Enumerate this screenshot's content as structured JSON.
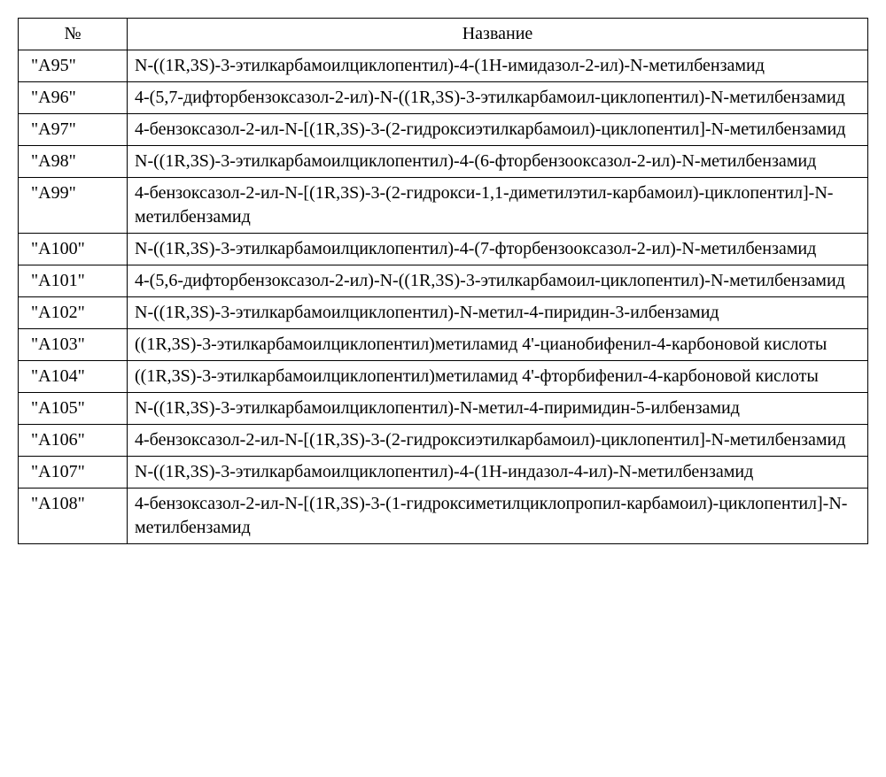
{
  "table": {
    "headers": {
      "num": "№",
      "name": "Название"
    },
    "rows": [
      {
        "num": "\"A95\"",
        "name": "N-((1R,3S)-3-этилкарбамоилциклопентил)-4-(1H-имидазол-2-ил)-N-метилбензамид"
      },
      {
        "num": "\"A96\"",
        "name": "4-(5,7-дифторбензоксазол-2-ил)-N-((1R,3S)-3-этилкарбамоил-циклопентил)-N-метилбензамид"
      },
      {
        "num": "\"A97\"",
        "name": "4-бензоксазол-2-ил-N-[(1R,3S)-3-(2-гидроксиэтилкарбамоил)-циклопентил]-N-метилбензамид"
      },
      {
        "num": "\"A98\"",
        "name": "N-((1R,3S)-3-этилкарбамоилциклопентил)-4-(6-фторбензооксазол-2-ил)-N-метилбензамид"
      },
      {
        "num": "\"A99\"",
        "name": "4-бензоксазол-2-ил-N-[(1R,3S)-3-(2-гидрокси-1,1-диметилэтил-карбамоил)-циклопентил]-N-метилбензамид"
      },
      {
        "num": "\"A100\"",
        "name": "N-((1R,3S)-3-этилкарбамоилциклопентил)-4-(7-фторбензооксазол-2-ил)-N-метилбензамид"
      },
      {
        "num": "\"A101\"",
        "name": "4-(5,6-дифторбензоксазол-2-ил)-N-((1R,3S)-3-этилкарбамоил-циклопентил)-N-метилбензамид"
      },
      {
        "num": "\"A102\"",
        "name": "N-((1R,3S)-3-этилкарбамоилциклопентил)-N-метил-4-пиридин-3-илбензамид"
      },
      {
        "num": "\"A103\"",
        "name": "((1R,3S)-3-этилкарбамоилциклопентил)метиламид 4'-цианобифенил-4-карбоновой кислоты"
      },
      {
        "num": "\"A104\"",
        "name": "((1R,3S)-3-этилкарбамоилциклопентил)метиламид 4'-фторбифенил-4-карбоновой кислоты"
      },
      {
        "num": "\"A105\"",
        "name": "N-((1R,3S)-3-этилкарбамоилциклопентил)-N-метил-4-пиримидин-5-илбензамид"
      },
      {
        "num": "\"A106\"",
        "name": "4-бензоксазол-2-ил-N-[(1R,3S)-3-(2-гидроксиэтилкарбамоил)-циклопентил]-N-метилбензамид"
      },
      {
        "num": "\"A107\"",
        "name": "N-((1R,3S)-3-этилкарбамоилциклопентил)-4-(1H-индазол-4-ил)-N-метилбензамид"
      },
      {
        "num": "\"A108\"",
        "name": "4-бензоксазол-2-ил-N-[(1R,3S)-3-(1-гидроксиметилциклопропил-карбамоил)-циклопентил]-N-метилбензамид"
      }
    ]
  }
}
